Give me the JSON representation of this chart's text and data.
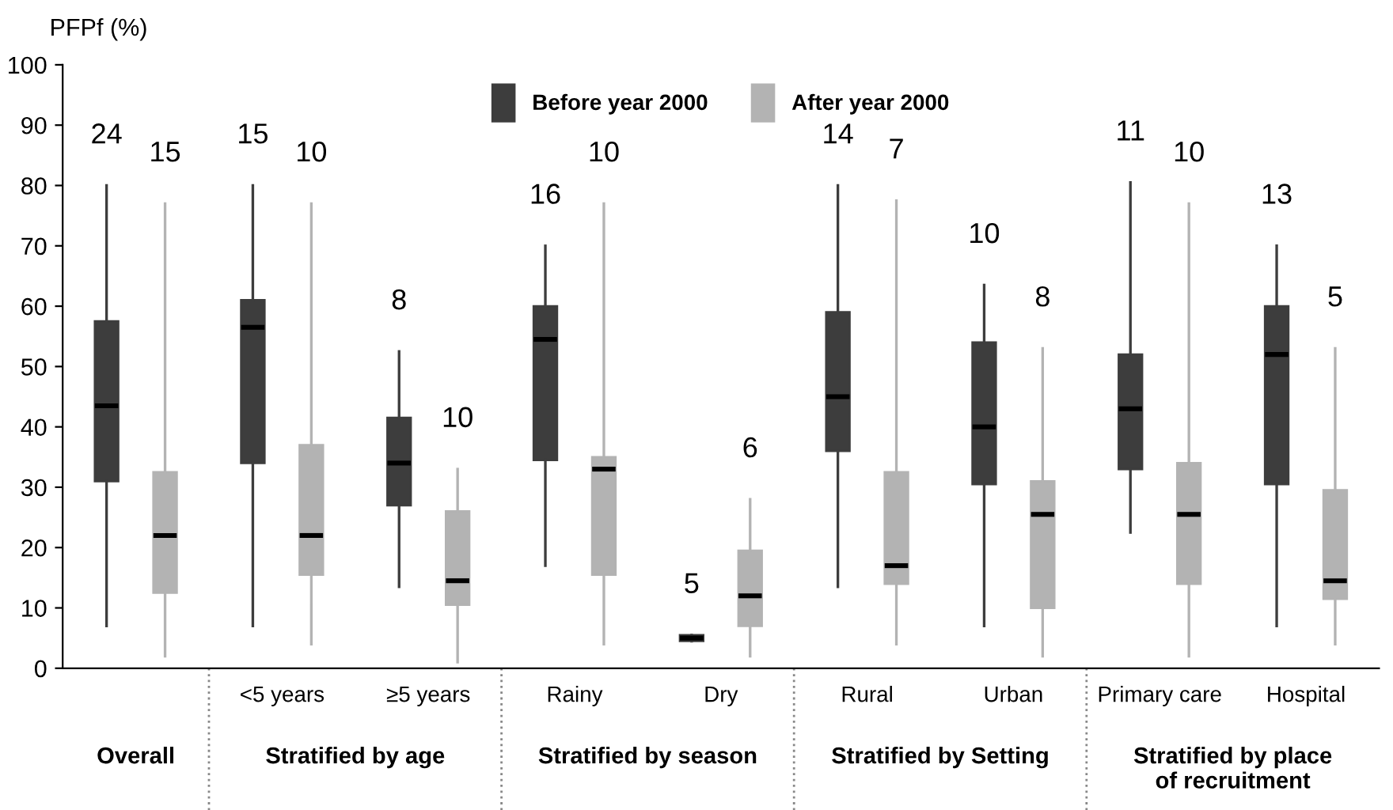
{
  "chart_data": {
    "type": "box",
    "ylabel": "PFPf (%)",
    "categories": [
      null,
      "<5 years",
      "≥5 years",
      "Rainy",
      "Dry",
      "Rural",
      "Urban",
      "Primary care",
      "Hospital"
    ],
    "series": [
      {
        "name": "Before year 2000",
        "color": "#3d3d3d",
        "value_labels": [
          "24",
          "15",
          "8",
          "16",
          "5",
          "14",
          "10",
          "11",
          "13"
        ],
        "boxes": [
          {
            "low": 7,
            "q1": 31,
            "median": 43.5,
            "q3": 57.5,
            "high": 80
          },
          {
            "low": 7,
            "q1": 34,
            "median": 56.5,
            "q3": 61,
            "high": 80
          },
          {
            "low": 13.5,
            "q1": 27,
            "median": 34,
            "q3": 41.5,
            "high": 52.5
          },
          {
            "low": 17,
            "q1": 34.5,
            "median": 54.5,
            "q3": 60,
            "high": 70
          },
          {
            "low": 4.5,
            "q1": 4.5,
            "median": 5,
            "q3": 5.5,
            "high": 5.5
          },
          {
            "low": 13.5,
            "q1": 36,
            "median": 45,
            "q3": 59,
            "high": 80
          },
          {
            "low": 7,
            "q1": 30.5,
            "median": 40,
            "q3": 54,
            "high": 63.5
          },
          {
            "low": 22.5,
            "q1": 33,
            "median": 43,
            "q3": 52,
            "high": 80.5
          },
          {
            "low": 7,
            "q1": 30.5,
            "median": 52,
            "q3": 60,
            "high": 70
          }
        ]
      },
      {
        "name": "After year 2000",
        "color": "#b3b3b3",
        "value_labels": [
          "15",
          "10",
          "10",
          "10",
          "6",
          "7",
          "8",
          "10",
          "5"
        ],
        "boxes": [
          {
            "low": 2,
            "q1": 12.5,
            "median": 22,
            "q3": 32.5,
            "high": 77
          },
          {
            "low": 4,
            "q1": 15.5,
            "median": 22,
            "q3": 37,
            "high": 77
          },
          {
            "low": 1,
            "q1": 10.5,
            "median": 14.5,
            "q3": 26,
            "high": 33
          },
          {
            "low": 4,
            "q1": 15.5,
            "median": 33,
            "q3": 35,
            "high": 77
          },
          {
            "low": 2,
            "q1": 7,
            "median": 12,
            "q3": 19.5,
            "high": 28
          },
          {
            "low": 4,
            "q1": 14,
            "median": 17,
            "q3": 32.5,
            "high": 77.5
          },
          {
            "low": 2,
            "q1": 10,
            "median": 25.5,
            "q3": 31,
            "high": 53
          },
          {
            "low": 2,
            "q1": 14,
            "median": 25.5,
            "q3": 34,
            "high": 77
          },
          {
            "low": 4,
            "q1": 11.5,
            "median": 14.5,
            "q3": 29.5,
            "high": 53
          }
        ]
      }
    ],
    "ylim": [
      0,
      100
    ],
    "yticks": [
      0,
      10,
      20,
      30,
      40,
      50,
      60,
      70,
      80,
      90,
      100
    ],
    "grid": false,
    "legend": "top",
    "annotations": [
      "Overall",
      "Stratified by age",
      "Stratified by season",
      "Stratified by Setting",
      "Stratified by place\nof recruitment"
    ]
  }
}
